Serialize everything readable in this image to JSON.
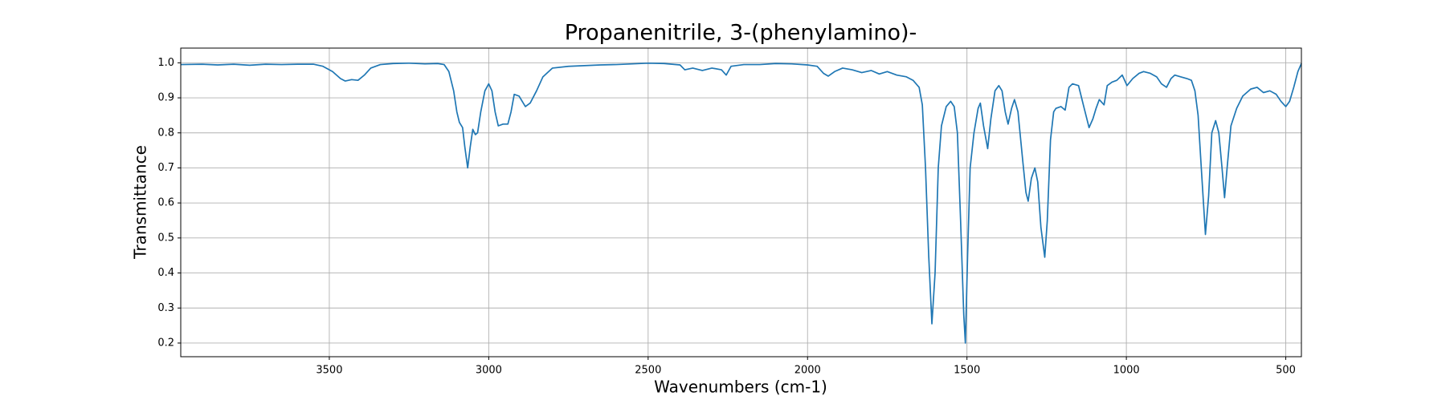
{
  "chart_data": {
    "type": "line",
    "title": "Propanenitrile, 3-(phenylamino)-",
    "x_label": "Wavenumbers (cm-1)",
    "y_label": "Transmittance",
    "color": "#1f77b4",
    "grid": true,
    "xlim": [
      3966,
      451
    ],
    "ylim": [
      0.161,
      1.042
    ],
    "xticks": [
      3500,
      3000,
      2500,
      2000,
      1500,
      1000,
      500
    ],
    "yticks": [
      0.2,
      0.3,
      0.4,
      0.5,
      0.6,
      0.7,
      0.8,
      0.9,
      {
        "value": 1,
        "label": "1.0"
      }
    ],
    "x": [
      3966,
      3900,
      3850,
      3800,
      3750,
      3700,
      3650,
      3600,
      3550,
      3520,
      3490,
      3465,
      3450,
      3430,
      3410,
      3390,
      3370,
      3340,
      3300,
      3250,
      3200,
      3160,
      3140,
      3125,
      3110,
      3100,
      3092,
      3082,
      3075,
      3066,
      3058,
      3050,
      3042,
      3035,
      3025,
      3012,
      3000,
      2990,
      2980,
      2970,
      2955,
      2940,
      2930,
      2920,
      2905,
      2885,
      2870,
      2850,
      2830,
      2800,
      2750,
      2700,
      2650,
      2600,
      2550,
      2500,
      2450,
      2400,
      2385,
      2360,
      2330,
      2300,
      2270,
      2255,
      2240,
      2200,
      2150,
      2100,
      2050,
      2000,
      1970,
      1950,
      1935,
      1915,
      1890,
      1860,
      1830,
      1800,
      1775,
      1750,
      1720,
      1690,
      1669,
      1650,
      1640,
      1630,
      1620,
      1610,
      1600,
      1590,
      1580,
      1565,
      1551,
      1540,
      1530,
      1520,
      1510,
      1505,
      1498,
      1490,
      1478,
      1465,
      1458,
      1448,
      1435,
      1425,
      1412,
      1400,
      1390,
      1380,
      1371,
      1360,
      1351,
      1340,
      1325,
      1315,
      1308,
      1298,
      1287,
      1278,
      1268,
      1256,
      1248,
      1238,
      1228,
      1221,
      1205,
      1192,
      1180,
      1169,
      1150,
      1135,
      1117,
      1105,
      1095,
      1085,
      1070,
      1060,
      1045,
      1030,
      1013,
      998,
      980,
      960,
      946,
      925,
      905,
      890,
      874,
      860,
      848,
      830,
      810,
      796,
      785,
      775,
      765,
      752,
      742,
      732,
      720,
      710,
      700,
      692,
      684,
      672,
      654,
      635,
      610,
      590,
      570,
      550,
      530,
      515,
      500,
      488,
      475,
      462,
      451
    ],
    "values": [
      0.995,
      0.996,
      0.994,
      0.996,
      0.993,
      0.996,
      0.995,
      0.996,
      0.996,
      0.99,
      0.975,
      0.955,
      0.948,
      0.952,
      0.95,
      0.965,
      0.985,
      0.995,
      0.998,
      0.999,
      0.997,
      0.998,
      0.995,
      0.975,
      0.92,
      0.86,
      0.83,
      0.815,
      0.76,
      0.7,
      0.76,
      0.81,
      0.795,
      0.8,
      0.86,
      0.92,
      0.94,
      0.92,
      0.86,
      0.82,
      0.825,
      0.825,
      0.86,
      0.91,
      0.905,
      0.875,
      0.885,
      0.92,
      0.96,
      0.985,
      0.99,
      0.992,
      0.994,
      0.995,
      0.997,
      0.999,
      0.998,
      0.994,
      0.98,
      0.985,
      0.978,
      0.985,
      0.98,
      0.965,
      0.99,
      0.995,
      0.995,
      0.998,
      0.997,
      0.994,
      0.99,
      0.97,
      0.962,
      0.975,
      0.985,
      0.98,
      0.972,
      0.978,
      0.968,
      0.975,
      0.965,
      0.96,
      0.95,
      0.93,
      0.88,
      0.7,
      0.45,
      0.255,
      0.4,
      0.7,
      0.82,
      0.875,
      0.89,
      0.875,
      0.8,
      0.55,
      0.28,
      0.2,
      0.45,
      0.7,
      0.8,
      0.87,
      0.885,
      0.82,
      0.755,
      0.84,
      0.92,
      0.935,
      0.92,
      0.86,
      0.825,
      0.87,
      0.895,
      0.86,
      0.72,
      0.63,
      0.605,
      0.67,
      0.7,
      0.66,
      0.53,
      0.445,
      0.55,
      0.78,
      0.86,
      0.87,
      0.875,
      0.865,
      0.93,
      0.94,
      0.935,
      0.88,
      0.815,
      0.84,
      0.87,
      0.895,
      0.88,
      0.935,
      0.945,
      0.95,
      0.965,
      0.935,
      0.955,
      0.97,
      0.975,
      0.97,
      0.96,
      0.94,
      0.93,
      0.955,
      0.965,
      0.96,
      0.955,
      0.95,
      0.92,
      0.85,
      0.7,
      0.51,
      0.62,
      0.8,
      0.835,
      0.8,
      0.7,
      0.615,
      0.7,
      0.82,
      0.87,
      0.905,
      0.925,
      0.93,
      0.915,
      0.92,
      0.91,
      0.89,
      0.875,
      0.89,
      0.93,
      0.975,
      0.998
    ]
  }
}
